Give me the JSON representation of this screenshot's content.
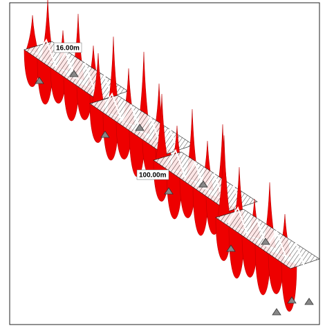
{
  "labels": [
    "16.00m",
    "100.00m"
  ]
}
